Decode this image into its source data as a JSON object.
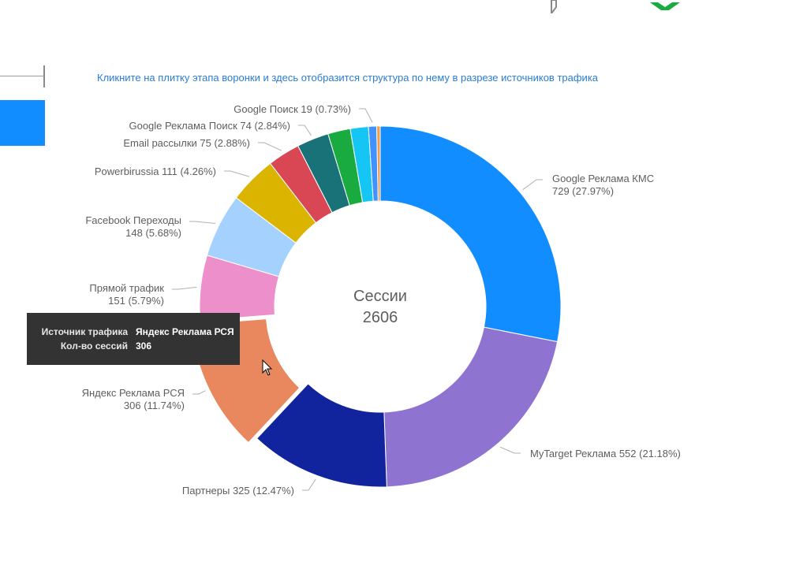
{
  "hint_text": "Кликните на плитку этапа воронки и здесь отобразится структура по нему в разрезе источников трафика",
  "colors": {
    "hint": "#2b7cd3",
    "tooltip_bg": "#333333",
    "label": "#605e5c",
    "left_tile": "#118dff",
    "logo_green": "#1aab40"
  },
  "chart_data": {
    "type": "pie",
    "variant": "donut",
    "center_label": "Сессии",
    "center_value": "2606",
    "slices": [
      {
        "label": "Google Реклама КМС",
        "value": 729,
        "percent": "27.97%",
        "color": "#118dff",
        "text_line1": "Google Реклама КМС",
        "text_line2": "729 (27.97%)"
      },
      {
        "label": "MyTarget Реклама",
        "value": 552,
        "percent": "21.18%",
        "color": "#8f73d1",
        "text_line1": "MyTarget Реклама 552 (21.18%)",
        "text_line2": ""
      },
      {
        "label": "Партнеры",
        "value": 325,
        "percent": "12.47%",
        "color": "#12239e",
        "text_line1": "Партнеры 325 (12.47%)",
        "text_line2": ""
      },
      {
        "label": "Яндекс Реклама РСЯ",
        "value": 306,
        "percent": "11.74%",
        "color": "#e9875e",
        "text_line1": "Яндекс Реклама РСЯ",
        "text_line2": "306 (11.74%)"
      },
      {
        "label": "Прямой трафик",
        "value": 151,
        "percent": "5.79%",
        "color": "#ec8fcb",
        "text_line1": "Прямой трафик",
        "text_line2": "151 (5.79%)"
      },
      {
        "label": "Facebook Переходы",
        "value": 148,
        "percent": "5.68%",
        "color": "#a4d1fd",
        "text_line1": "Facebook Переходы",
        "text_line2": "148 (5.68%)"
      },
      {
        "label": "Powerbirussia",
        "value": 111,
        "percent": "4.26%",
        "color": "#dbb400",
        "text_line1": "Powerbirussia 111 (4.26%)",
        "text_line2": ""
      },
      {
        "label": "Email рассылки",
        "value": 75,
        "percent": "2.88%",
        "color": "#d94654",
        "text_line1": "Email рассылки 75 (2.88%)",
        "text_line2": ""
      },
      {
        "label": "Google Реклама Поиск",
        "value": 74,
        "percent": "2.84%",
        "color": "#197278",
        "text_line1": "Google Реклама Поиск 74 (2.84%)",
        "text_line2": ""
      },
      {
        "label": "",
        "value": 52,
        "percent": "",
        "color": "#1aab40",
        "text_line1": "",
        "text_line2": ""
      },
      {
        "label": "",
        "value": 42,
        "percent": "",
        "color": "#15c6f4",
        "text_line1": "",
        "text_line2": ""
      },
      {
        "label": "Google Поиск",
        "value": 19,
        "percent": "0.73%",
        "color": "#4092ff",
        "text_line1": "Google Поиск 19 (0.73%)",
        "text_line2": ""
      },
      {
        "label": "",
        "value": 8,
        "percent": "",
        "color": "#f39c46",
        "text_line1": "",
        "text_line2": ""
      }
    ]
  },
  "tooltip": {
    "source_key": "Источник трафика",
    "source_value": "Яндекс Реклама РСЯ",
    "sessions_key": "Кол-во сессий",
    "sessions_value": "306"
  }
}
